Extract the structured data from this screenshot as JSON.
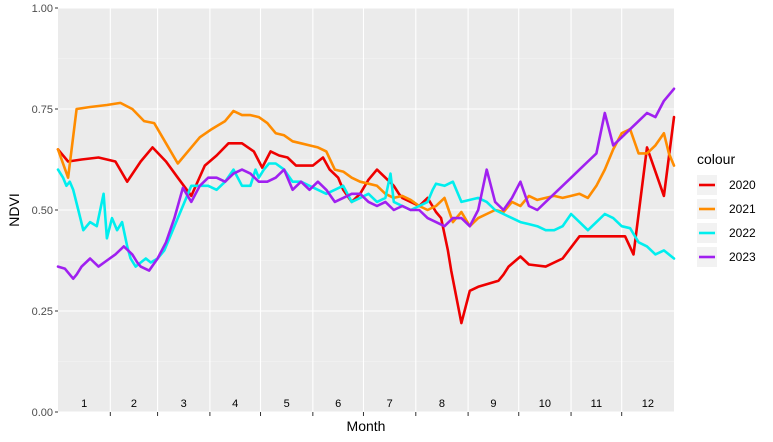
{
  "chart_data": {
    "type": "line",
    "xlabel": "Month",
    "ylabel": "NDVI",
    "ylim": [
      0,
      1
    ],
    "y_ticks": [
      "0.00",
      "0.25",
      "0.50",
      "0.75",
      "1.00"
    ],
    "y_tick_values": [
      0,
      0.25,
      0.5,
      0.75,
      1
    ],
    "xlim": [
      1,
      366
    ],
    "month_labels": [
      "1",
      "2",
      "3",
      "4",
      "5",
      "6",
      "7",
      "8",
      "9",
      "10",
      "11",
      "12"
    ],
    "grid": true,
    "legend": {
      "title": "colour",
      "position": "right"
    },
    "series": [
      {
        "name": "2020",
        "color": "#ee0000",
        "x": [
          1,
          7,
          15,
          25,
          35,
          42,
          50,
          57,
          65,
          72,
          80,
          88,
          95,
          102,
          110,
          117,
          122,
          127,
          132,
          137,
          142,
          148,
          152,
          158,
          162,
          167,
          170,
          175,
          180,
          185,
          190,
          195,
          200,
          203,
          205,
          210,
          215,
          220,
          225,
          228,
          232,
          234,
          240,
          245,
          250,
          258,
          262,
          265,
          268,
          275,
          280,
          290,
          300,
          310,
          320,
          330,
          337,
          342,
          350,
          360,
          366
        ],
        "y": [
          0.65,
          0.62,
          0.625,
          0.63,
          0.62,
          0.57,
          0.62,
          0.655,
          0.62,
          0.58,
          0.535,
          0.61,
          0.635,
          0.665,
          0.665,
          0.645,
          0.605,
          0.645,
          0.635,
          0.63,
          0.61,
          0.61,
          0.61,
          0.63,
          0.6,
          0.58,
          0.55,
          0.52,
          0.54,
          0.575,
          0.6,
          0.58,
          0.56,
          0.54,
          0.53,
          0.52,
          0.51,
          0.53,
          0.495,
          0.48,
          0.4,
          0.35,
          0.22,
          0.3,
          0.31,
          0.32,
          0.325,
          0.34,
          0.36,
          0.385,
          0.365,
          0.36,
          0.38,
          0.435,
          0.435,
          0.435,
          0.435,
          0.39,
          0.655,
          0.535,
          0.73
        ]
      },
      {
        "name": "2021",
        "color": "#ff8c00",
        "x": [
          1,
          7,
          12,
          20,
          30,
          38,
          45,
          52,
          58,
          65,
          72,
          80,
          85,
          92,
          100,
          105,
          110,
          115,
          120,
          125,
          130,
          135,
          140,
          145,
          150,
          155,
          160,
          165,
          170,
          175,
          180,
          185,
          190,
          195,
          200,
          205,
          210,
          215,
          220,
          225,
          230,
          235,
          240,
          245,
          250,
          255,
          260,
          265,
          270,
          275,
          280,
          285,
          290,
          295,
          300,
          305,
          310,
          315,
          320,
          325,
          330,
          335,
          340,
          345,
          350,
          355,
          360,
          363,
          366
        ],
        "y": [
          0.65,
          0.58,
          0.75,
          0.755,
          0.76,
          0.765,
          0.75,
          0.72,
          0.715,
          0.665,
          0.615,
          0.655,
          0.68,
          0.7,
          0.72,
          0.745,
          0.735,
          0.735,
          0.73,
          0.715,
          0.69,
          0.685,
          0.67,
          0.665,
          0.66,
          0.655,
          0.645,
          0.6,
          0.595,
          0.58,
          0.57,
          0.565,
          0.56,
          0.54,
          0.53,
          0.535,
          0.525,
          0.51,
          0.5,
          0.51,
          0.53,
          0.47,
          0.495,
          0.46,
          0.48,
          0.49,
          0.5,
          0.495,
          0.52,
          0.51,
          0.535,
          0.525,
          0.53,
          0.535,
          0.53,
          0.535,
          0.54,
          0.53,
          0.56,
          0.6,
          0.65,
          0.69,
          0.7,
          0.64,
          0.64,
          0.66,
          0.69,
          0.64,
          0.61
        ]
      },
      {
        "name": "2022",
        "color": "#00eeee",
        "x": [
          1,
          4,
          6,
          8,
          10,
          13,
          16,
          20,
          24,
          28,
          30,
          33,
          36,
          39,
          42,
          44,
          47,
          50,
          53,
          56,
          60,
          64,
          68,
          72,
          76,
          80,
          85,
          90,
          95,
          100,
          105,
          110,
          115,
          118,
          120,
          123,
          126,
          130,
          135,
          140,
          145,
          150,
          155,
          160,
          165,
          170,
          175,
          180,
          185,
          190,
          195,
          198,
          200,
          205,
          210,
          215,
          220,
          223,
          225,
          230,
          235,
          240,
          245,
          250,
          255,
          260,
          265,
          270,
          275,
          280,
          285,
          290,
          295,
          300,
          305,
          310,
          315,
          320,
          325,
          330,
          335,
          340,
          345,
          350,
          355,
          360,
          366
        ],
        "y": [
          0.6,
          0.58,
          0.56,
          0.57,
          0.55,
          0.5,
          0.45,
          0.47,
          0.46,
          0.54,
          0.43,
          0.48,
          0.45,
          0.47,
          0.41,
          0.38,
          0.36,
          0.37,
          0.38,
          0.37,
          0.38,
          0.4,
          0.44,
          0.48,
          0.52,
          0.56,
          0.56,
          0.56,
          0.55,
          0.57,
          0.6,
          0.56,
          0.56,
          0.6,
          0.58,
          0.6,
          0.615,
          0.615,
          0.6,
          0.57,
          0.57,
          0.56,
          0.55,
          0.54,
          0.55,
          0.56,
          0.52,
          0.53,
          0.54,
          0.52,
          0.53,
          0.59,
          0.52,
          0.51,
          0.5,
          0.51,
          0.52,
          0.55,
          0.565,
          0.56,
          0.57,
          0.52,
          0.525,
          0.53,
          0.52,
          0.5,
          0.49,
          0.48,
          0.47,
          0.465,
          0.46,
          0.45,
          0.45,
          0.46,
          0.49,
          0.47,
          0.45,
          0.47,
          0.49,
          0.48,
          0.46,
          0.455,
          0.42,
          0.41,
          0.39,
          0.4,
          0.38
        ]
      },
      {
        "name": "2023",
        "color": "#a020f0",
        "x": [
          1,
          5,
          10,
          12,
          15,
          20,
          25,
          30,
          35,
          40,
          45,
          48,
          50,
          55,
          60,
          65,
          70,
          75,
          80,
          85,
          90,
          95,
          100,
          105,
          110,
          115,
          120,
          125,
          130,
          135,
          140,
          145,
          150,
          155,
          160,
          165,
          170,
          175,
          180,
          185,
          190,
          195,
          200,
          205,
          210,
          215,
          220,
          225,
          230,
          235,
          240,
          245,
          250,
          255,
          260,
          265,
          270,
          275,
          280,
          285,
          290,
          295,
          300,
          305,
          310,
          315,
          320,
          325,
          330,
          335,
          340,
          345,
          350,
          355,
          360,
          366
        ],
        "y": [
          0.36,
          0.355,
          0.33,
          0.34,
          0.36,
          0.38,
          0.36,
          0.375,
          0.39,
          0.41,
          0.39,
          0.37,
          0.36,
          0.35,
          0.38,
          0.42,
          0.48,
          0.555,
          0.52,
          0.56,
          0.58,
          0.58,
          0.57,
          0.59,
          0.6,
          0.59,
          0.57,
          0.57,
          0.58,
          0.6,
          0.55,
          0.57,
          0.55,
          0.57,
          0.55,
          0.52,
          0.53,
          0.54,
          0.54,
          0.52,
          0.51,
          0.52,
          0.5,
          0.51,
          0.5,
          0.5,
          0.48,
          0.47,
          0.46,
          0.48,
          0.48,
          0.46,
          0.5,
          0.6,
          0.52,
          0.5,
          0.53,
          0.57,
          0.51,
          0.5,
          0.52,
          0.54,
          0.56,
          0.58,
          0.6,
          0.62,
          0.64,
          0.74,
          0.66,
          0.68,
          0.7,
          0.72,
          0.74,
          0.73,
          0.77,
          0.8
        ]
      }
    ]
  }
}
